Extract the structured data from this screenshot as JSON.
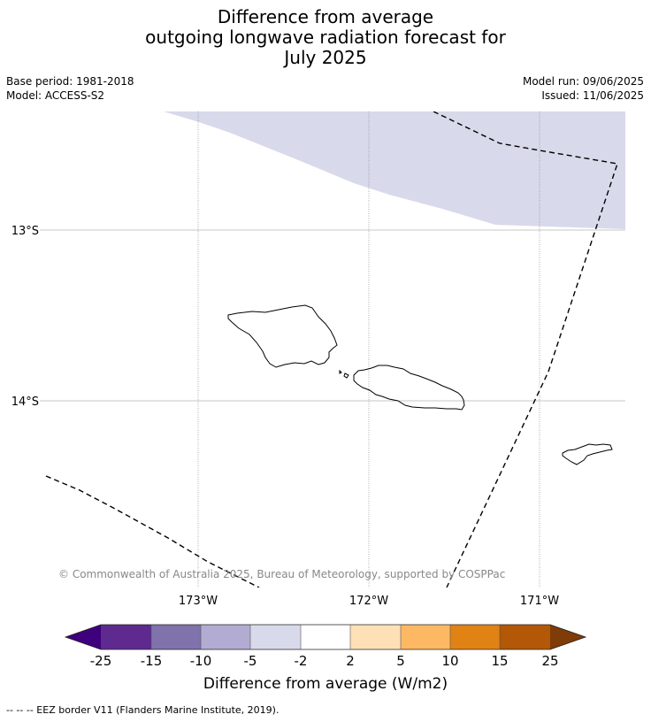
{
  "title": {
    "line1": "Difference from average",
    "line2": "outgoing longwave radiation forecast for",
    "line3": "July 2025"
  },
  "meta": {
    "base_period": "Base period: 1981-2018",
    "model": "Model: ACCESS-S2",
    "model_run": "Model run: 09/06/2025",
    "issued": "Issued: 11/06/2025"
  },
  "map": {
    "lat_labels": [
      "13°S",
      "14°S"
    ],
    "lon_labels": [
      "173°W",
      "172°W",
      "171°W"
    ],
    "copyright": "© Commonwealth of Australia 2025, Bureau of Meteorology, supported by COSPPac",
    "anomaly_fill_color": "#d8d9ea",
    "anomaly_fill_class": "-5 to -2 W/m2"
  },
  "colorbar": {
    "ticks": [
      "-25",
      "-15",
      "-10",
      "-5",
      "-2",
      "2",
      "5",
      "10",
      "15",
      "25"
    ],
    "colors": [
      "#3f007d",
      "#5e2a8f",
      "#8073ac",
      "#b2abd2",
      "#d8daeb",
      "#ffffff",
      "#fee0b6",
      "#fdb863",
      "#e08214",
      "#b35806",
      "#7f3b08"
    ],
    "title": "Difference from average (W/m2)"
  },
  "footer": "--  --  -- EEZ border V11 (Flanders Marine Institute, 2019)."
}
